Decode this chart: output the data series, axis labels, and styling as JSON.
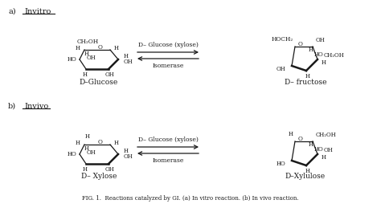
{
  "bg_color": "#ffffff",
  "fig_caption": "FIG. 1.  Reactions catalyzed by GI. (a) In vitro reaction. (b) In vivo reaction.",
  "label_a": "a)",
  "label_b": "b)",
  "invitro": "Invitro",
  "invivo": "Invivo",
  "glucose_label": "D–Glucose",
  "fructose_label": "D– fructose",
  "xylose_label": "D– Xylose",
  "xylulose_label": "D–Xylulose",
  "reaction_label": "D– Glucose (xylose)",
  "isomerase": "Isomerase",
  "font_color": "#1a1a1a",
  "line_color": "#1a1a1a"
}
